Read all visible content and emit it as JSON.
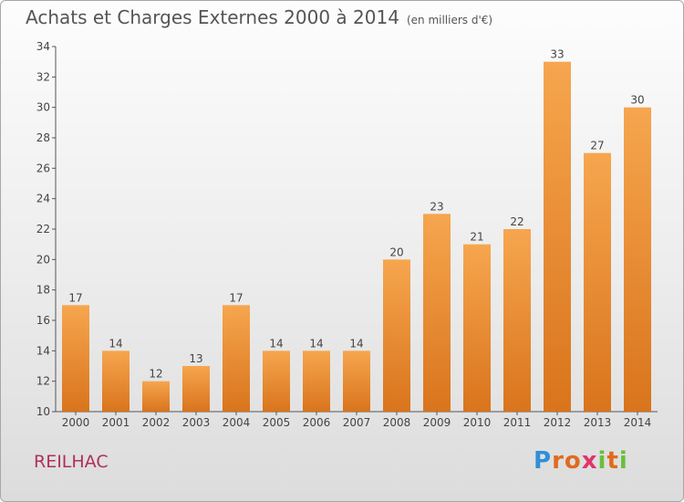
{
  "header": {
    "title": "Achats et Charges Externes 2000 à 2014",
    "unit": "(en milliers d'€)"
  },
  "footer": {
    "place": "REILHAC",
    "logo": "Proxiti",
    "logo_letters": [
      {
        "ch": "P",
        "color": "#2f8fd8"
      },
      {
        "ch": "r",
        "color": "#e06b1f"
      },
      {
        "ch": "o",
        "color": "#e06b1f"
      },
      {
        "ch": "x",
        "color": "#e0356a"
      },
      {
        "ch": "i",
        "color": "#6abf3a"
      },
      {
        "ch": "t",
        "color": "#e06b1f"
      },
      {
        "ch": "i",
        "color": "#6abf3a"
      }
    ]
  },
  "colors": {
    "bar_top": "#f6a64f",
    "bar_bottom": "#d9741c",
    "axis": "#555555",
    "grid": "#cfcfcf",
    "title": "#555555",
    "place": "#b0305a"
  },
  "chart_data": {
    "type": "bar",
    "title": "Achats et Charges Externes 2000 à 2014",
    "subtitle": "(en milliers d'€)",
    "xlabel": "",
    "ylabel": "",
    "categories": [
      "2000",
      "2001",
      "2002",
      "2003",
      "2004",
      "2005",
      "2006",
      "2007",
      "2008",
      "2009",
      "2010",
      "2011",
      "2012",
      "2013",
      "2014"
    ],
    "values": [
      17,
      14,
      12,
      13,
      17,
      14,
      14,
      14,
      20,
      23,
      21,
      22,
      33,
      27,
      30
    ],
    "ylim": [
      10,
      34
    ],
    "yticks": [
      10,
      12,
      14,
      16,
      18,
      20,
      22,
      24,
      26,
      28,
      30,
      32,
      34
    ],
    "grid": false,
    "data_labels": true
  }
}
